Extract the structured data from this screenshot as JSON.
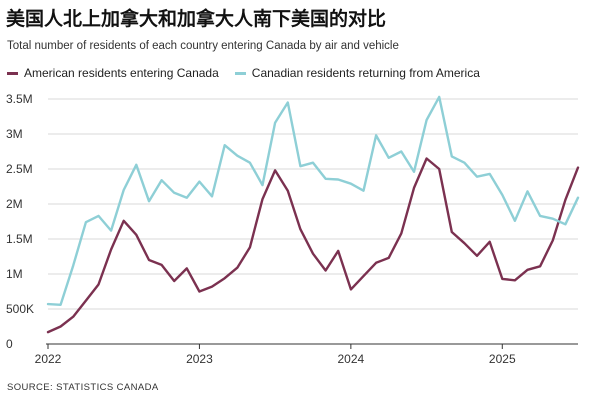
{
  "title": "美国人北上加拿大和加拿大人南下美国的对比",
  "subtitle": "Total number of residents of each country entering Canada by air and vehicle",
  "source": "SOURCE: STATISTICS CANADA",
  "colors": {
    "american": "#7b3150",
    "canadian": "#8ecfd6",
    "grid": "#d9d9d9",
    "axis": "#333333"
  },
  "chart_data": {
    "type": "line",
    "title": "美国人北上加拿大和加拿大人南下美国的对比",
    "xlabel": "",
    "ylabel": "",
    "ylim": [
      0,
      3500000
    ],
    "xlim": [
      0,
      42
    ],
    "yticks": [
      {
        "value": 0,
        "label": "0"
      },
      {
        "value": 500000,
        "label": "500K"
      },
      {
        "value": 1000000,
        "label": "1M"
      },
      {
        "value": 1500000,
        "label": "1.5M"
      },
      {
        "value": 2000000,
        "label": "2M"
      },
      {
        "value": 2500000,
        "label": "2.5M"
      },
      {
        "value": 3000000,
        "label": "3M"
      },
      {
        "value": 3500000,
        "label": "3.5M"
      }
    ],
    "xticks": [
      {
        "index": 0,
        "label": "2022"
      },
      {
        "index": 12,
        "label": "2023"
      },
      {
        "index": 24,
        "label": "2024"
      },
      {
        "index": 36,
        "label": "2025"
      }
    ],
    "series": [
      {
        "name": "American residents entering Canada",
        "color": "#7b3150",
        "values": [
          170000,
          250000,
          390000,
          620000,
          850000,
          1350000,
          1760000,
          1560000,
          1200000,
          1130000,
          900000,
          1080000,
          750000,
          820000,
          940000,
          1090000,
          1380000,
          2070000,
          2480000,
          2190000,
          1640000,
          1290000,
          1050000,
          1330000,
          780000,
          970000,
          1160000,
          1230000,
          1580000,
          2230000,
          2650000,
          2500000,
          1600000,
          1440000,
          1260000,
          1460000,
          930000,
          910000,
          1060000,
          1110000,
          1480000,
          2060000,
          2520000
        ]
      },
      {
        "name": "Canadian residents returning from America",
        "color": "#8ecfd6",
        "values": [
          570000,
          560000,
          1120000,
          1740000,
          1830000,
          1620000,
          2200000,
          2560000,
          2040000,
          2340000,
          2160000,
          2090000,
          2320000,
          2110000,
          2840000,
          2690000,
          2590000,
          2270000,
          3160000,
          3450000,
          2540000,
          2590000,
          2360000,
          2350000,
          2290000,
          2190000,
          2980000,
          2660000,
          2750000,
          2460000,
          3200000,
          3530000,
          2680000,
          2590000,
          2390000,
          2430000,
          2130000,
          1760000,
          2180000,
          1830000,
          1790000,
          1710000,
          2090000
        ]
      }
    ]
  }
}
